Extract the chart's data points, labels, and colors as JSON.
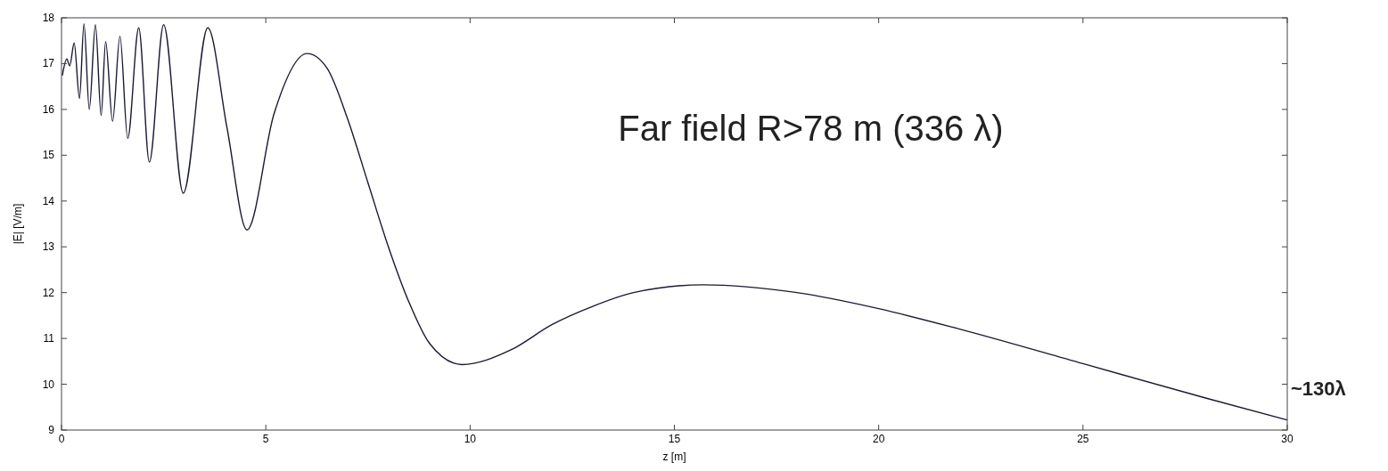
{
  "chart_data": {
    "type": "line",
    "xlabel": "z [m]",
    "ylabel": "|E| [V/m]",
    "xlim": [
      0,
      30
    ],
    "ylim": [
      9,
      18
    ],
    "xticks": [
      0,
      5,
      10,
      15,
      20,
      25,
      30
    ],
    "yticks": [
      9,
      10,
      11,
      12,
      13,
      14,
      15,
      16,
      17,
      18
    ],
    "grid": false,
    "annotations": [
      "Far field R>78 m (336 λ)",
      {
        "text": "~130λ",
        "x": 30,
        "y": 9.22
      }
    ],
    "series": [
      {
        "color": "#1a1a33",
        "x": [
          0.02,
          0.13,
          0.2,
          0.31,
          0.44,
          0.55,
          0.68,
          0.83,
          0.97,
          1.08,
          1.25,
          1.43,
          1.62,
          1.89,
          2.15,
          2.5,
          2.98,
          3.58,
          4.05,
          4.54,
          5.2,
          6.01,
          6.5,
          7,
          7.5,
          8,
          8.5,
          9,
          9.8,
          11,
          12,
          13,
          14,
          15.7,
          18,
          20,
          22,
          25,
          28,
          30
        ],
        "values": [
          16.74,
          17.1,
          16.95,
          17.45,
          16.24,
          17.87,
          16.0,
          17.85,
          15.87,
          17.48,
          15.74,
          17.6,
          15.37,
          17.78,
          14.85,
          17.85,
          14.17,
          17.78,
          15.6,
          13.37,
          15.9,
          17.22,
          16.9,
          15.8,
          14.4,
          13.0,
          11.8,
          10.9,
          10.43,
          10.75,
          11.3,
          11.7,
          12.0,
          12.17,
          12.0,
          11.65,
          11.2,
          10.45,
          9.7,
          9.22
        ]
      }
    ]
  }
}
